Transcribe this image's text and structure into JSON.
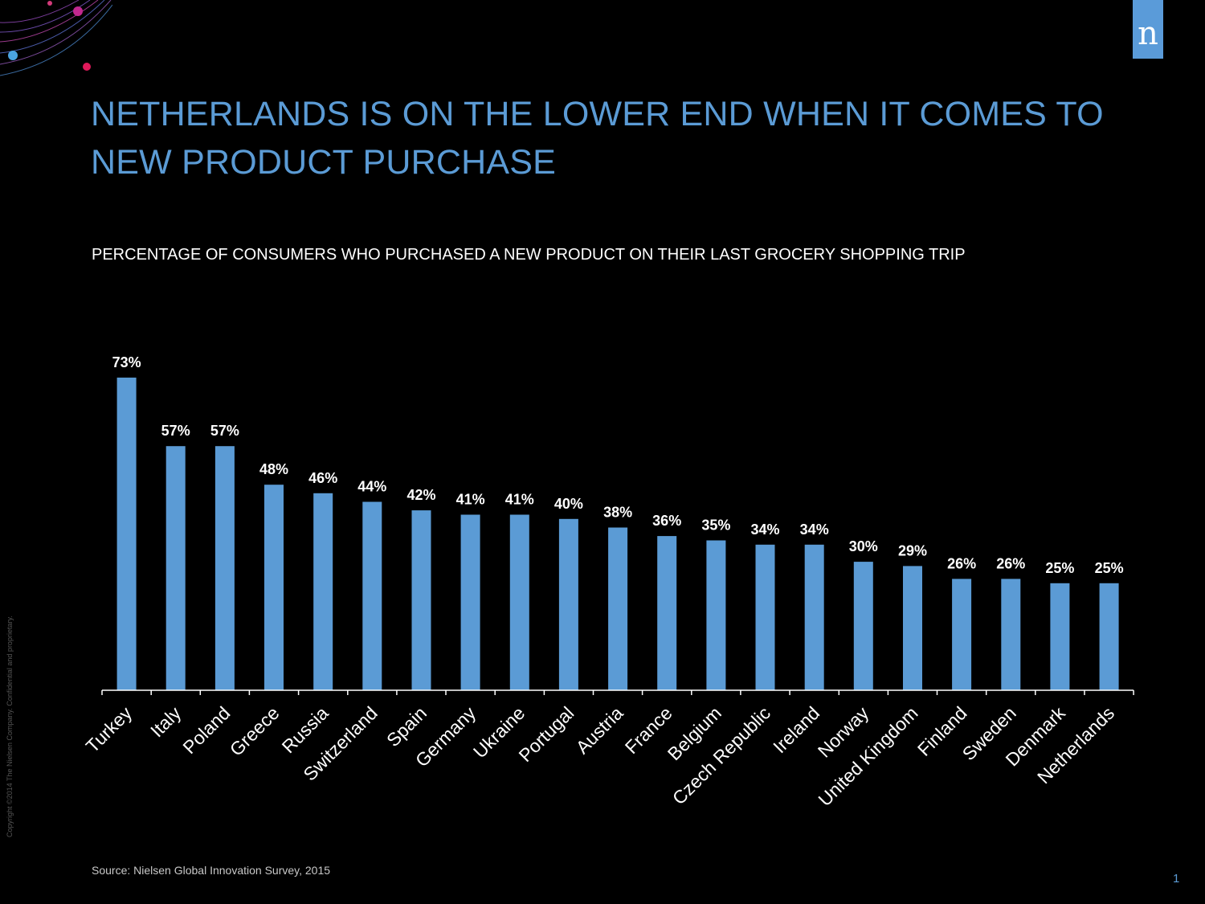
{
  "slide": {
    "logo_letter": "n",
    "title": "NETHERLANDS IS ON THE LOWER END WHEN IT COMES TO NEW PRODUCT PURCHASE",
    "source": "Source: Nielsen Global Innovation Survey, 2015",
    "copyright": "Copyright ©2014 The Nielsen Company. Confidential and proprietary.",
    "page_number": "1"
  },
  "colors": {
    "bar": "#5b9bd5",
    "title": "#5b9bd5",
    "background": "#000000",
    "label": "#ffffff"
  },
  "chart_data": {
    "type": "bar",
    "title": "PERCENTAGE OF CONSUMERS WHO PURCHASED A NEW PRODUCT ON THEIR LAST GROCERY SHOPPING TRIP",
    "xlabel": "",
    "ylabel": "",
    "categories": [
      "Turkey",
      "Italy",
      "Poland",
      "Greece",
      "Russia",
      "Switzerland",
      "Spain",
      "Germany",
      "Ukraine",
      "Portugal",
      "Austria",
      "France",
      "Belgium",
      "Czech Republic",
      "Ireland",
      "Norway",
      "United Kingdom",
      "Finland",
      "Sweden",
      "Denmark",
      "Netherlands"
    ],
    "values": [
      73,
      57,
      57,
      48,
      46,
      44,
      42,
      41,
      41,
      40,
      38,
      36,
      35,
      34,
      34,
      30,
      29,
      26,
      26,
      25,
      25
    ],
    "value_labels": [
      "73%",
      "57%",
      "57%",
      "48%",
      "46%",
      "44%",
      "42%",
      "41%",
      "41%",
      "40%",
      "38%",
      "36%",
      "35%",
      "34%",
      "34%",
      "30%",
      "29%",
      "26%",
      "26%",
      "25%",
      "25%"
    ],
    "grid": false,
    "legend": "none"
  }
}
